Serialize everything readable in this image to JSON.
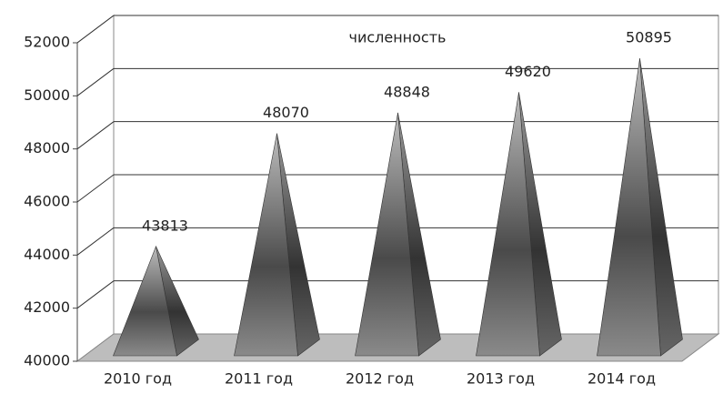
{
  "chart_data": {
    "type": "pyramid3d",
    "title": "численность",
    "categories": [
      "2010 год",
      "2011 год",
      "2012 год",
      "2013 год",
      "2014 год"
    ],
    "values": [
      43813,
      48070,
      48848,
      49620,
      50895
    ],
    "ylim": [
      40000,
      52000
    ],
    "yticks": [
      40000,
      42000,
      44000,
      46000,
      48000,
      50000,
      52000
    ],
    "grid": true,
    "color": "#7a7a7a"
  }
}
